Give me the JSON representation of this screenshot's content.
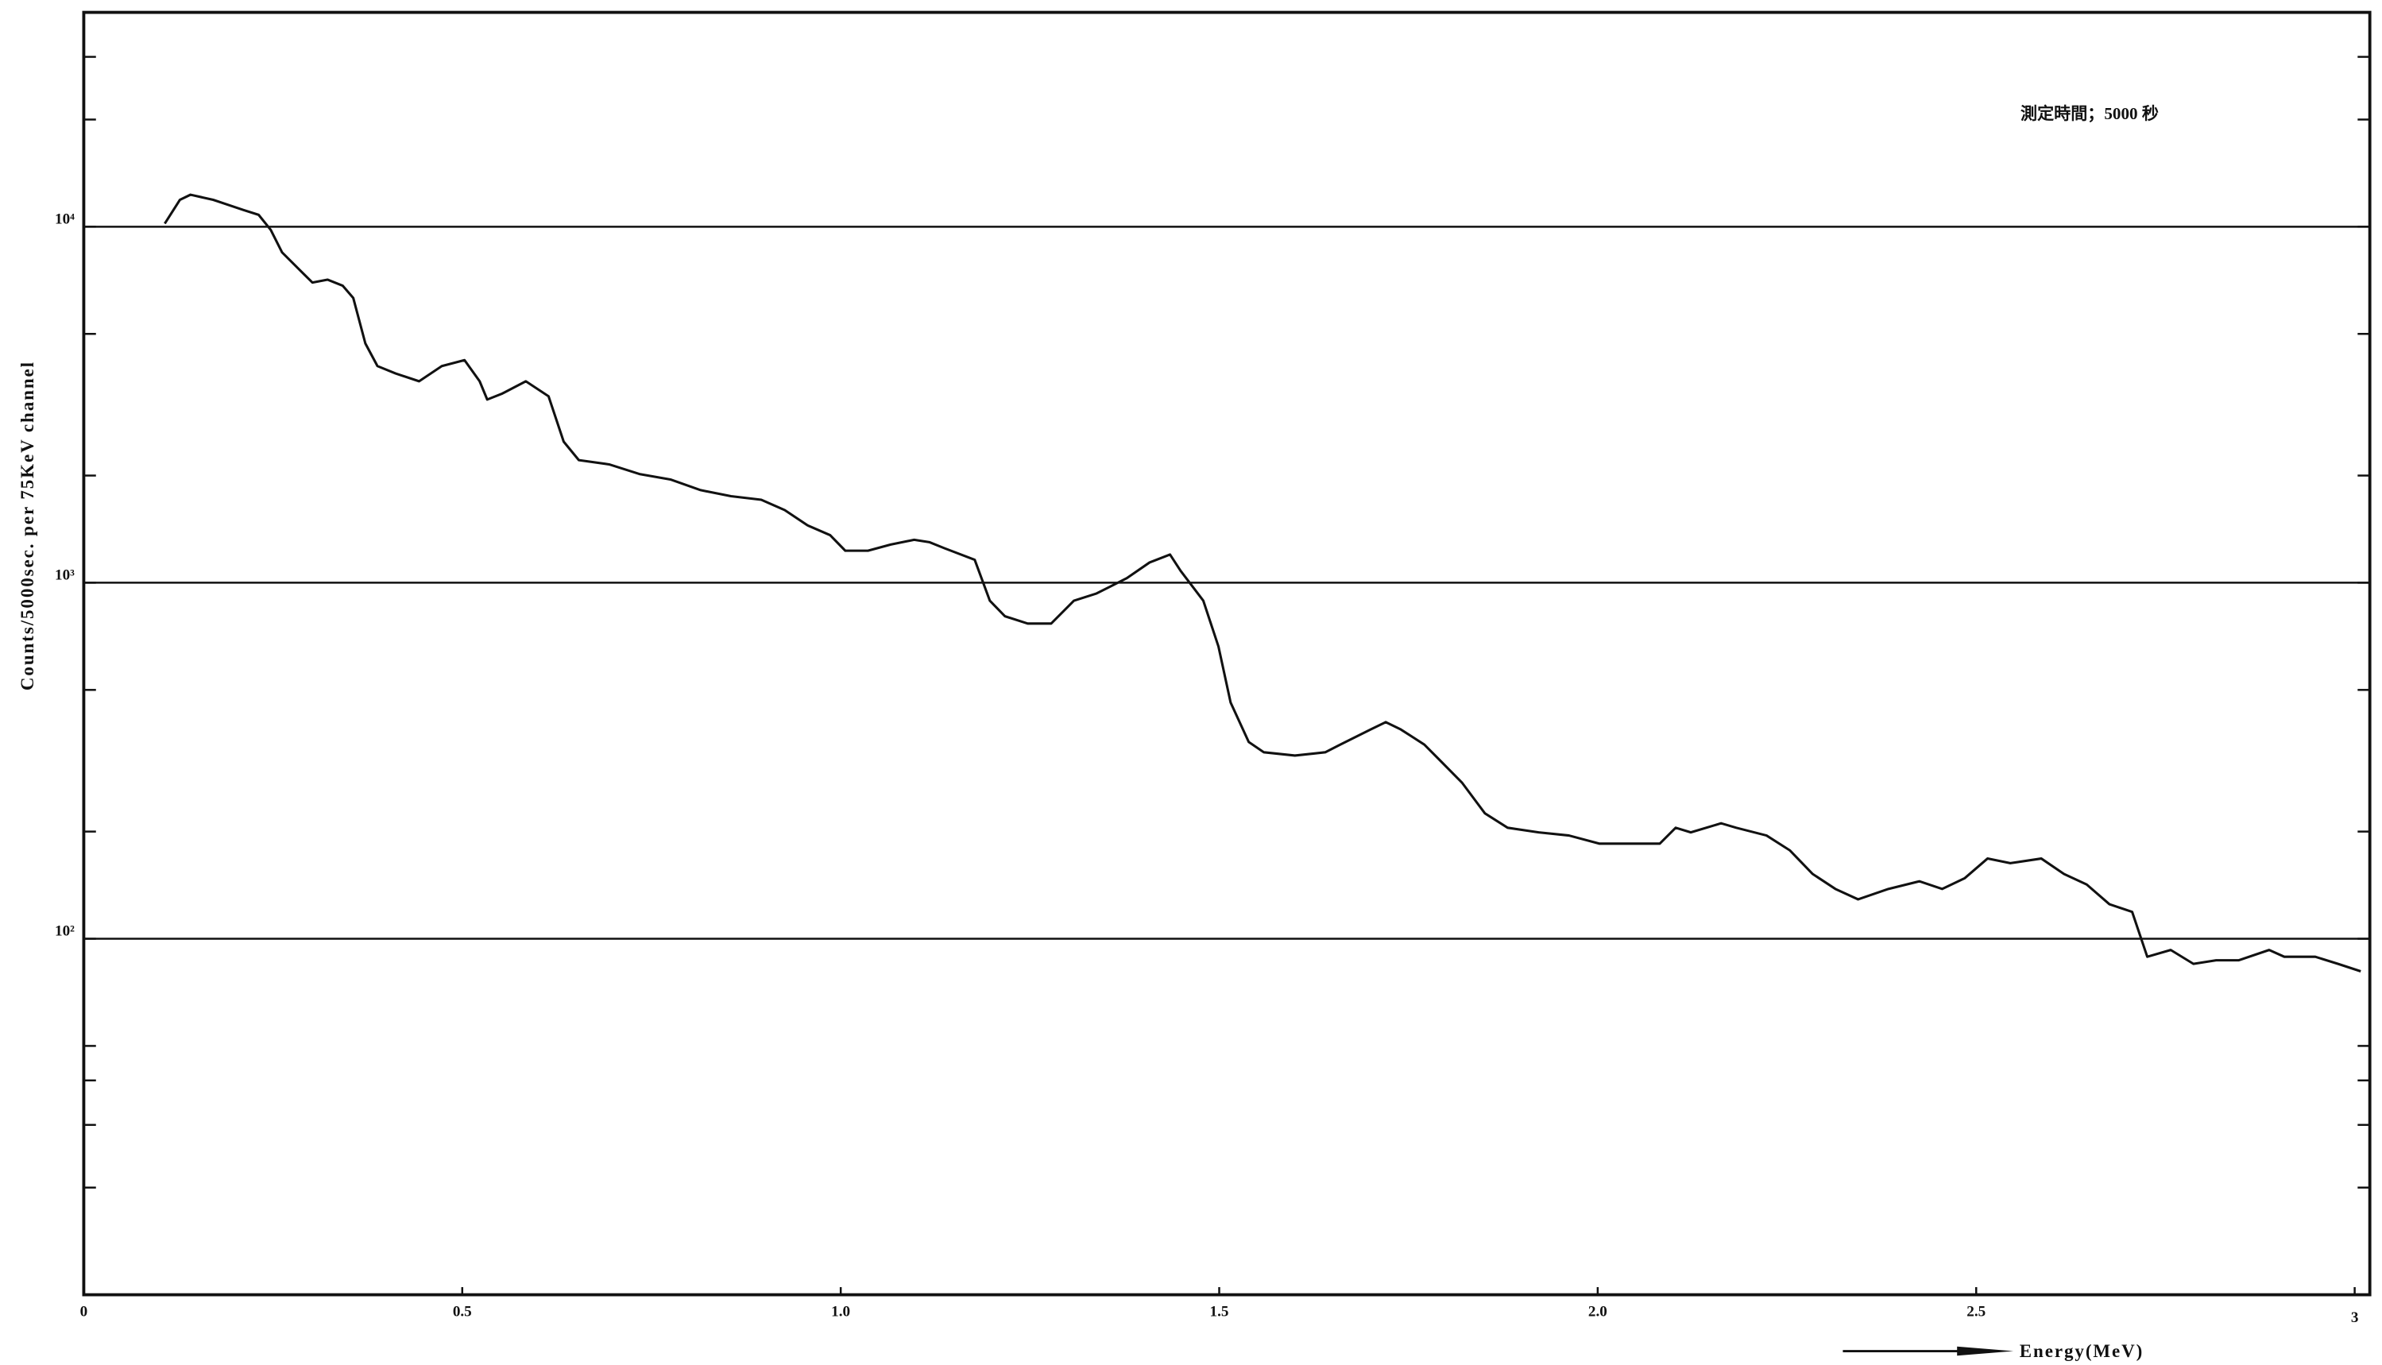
{
  "chart_data": {
    "type": "line",
    "annotation": "測定時間；5000 秒",
    "ylabel": "Counts/5000sec. per 75KeV channel",
    "xlabel": "Energy(MeV)",
    "log_y": true,
    "grid": true,
    "xlim": [
      0,
      3.02
    ],
    "ylim": [
      10,
      40000
    ],
    "xticks": [
      0,
      0.5,
      {
        "value": 1,
        "label": "1.0"
      },
      1.5,
      {
        "value": 2,
        "label": "2.0"
      },
      2.5,
      3
    ],
    "yticks": [
      {
        "value": 100,
        "label": "10²"
      },
      {
        "value": 1000,
        "label": "10³"
      },
      {
        "value": 10000,
        "label": "10⁴"
      }
    ],
    "yminorticks": [
      20,
      30,
      40,
      50,
      200,
      500,
      2000,
      5000,
      20000,
      30000
    ],
    "series": [
      {
        "color": "#111111",
        "x": [
          0.107,
          0.127,
          0.141,
          0.171,
          0.211,
          0.231,
          0.247,
          0.262,
          0.282,
          0.302,
          0.322,
          0.342,
          0.356,
          0.372,
          0.388,
          0.412,
          0.443,
          0.473,
          0.503,
          0.523,
          0.533,
          0.553,
          0.584,
          0.614,
          0.634,
          0.654,
          0.694,
          0.734,
          0.775,
          0.815,
          0.855,
          0.895,
          0.926,
          0.956,
          0.986,
          1.006,
          1.036,
          1.066,
          1.097,
          1.117,
          1.137,
          1.177,
          1.197,
          1.217,
          1.247,
          1.278,
          1.308,
          1.338,
          1.378,
          1.408,
          1.435,
          1.449,
          1.479,
          1.499,
          1.515,
          1.539,
          1.559,
          1.6,
          1.64,
          1.66,
          1.7,
          1.72,
          1.74,
          1.771,
          1.791,
          1.821,
          1.851,
          1.881,
          1.922,
          1.962,
          2.002,
          2.042,
          2.082,
          2.103,
          2.123,
          2.163,
          2.183,
          2.223,
          2.254,
          2.284,
          2.314,
          2.344,
          2.384,
          2.425,
          2.455,
          2.485,
          2.515,
          2.545,
          2.586,
          2.616,
          2.646,
          2.676,
          2.706,
          2.726,
          2.757,
          2.787,
          2.817,
          2.847,
          2.887,
          2.907,
          2.948,
          2.978,
          3.008
        ],
        "values": [
          10200,
          11900,
          12300,
          11900,
          11140,
          10800,
          9800,
          8470,
          7680,
          6970,
          7100,
          6830,
          6310,
          4700,
          4060,
          3870,
          3680,
          4060,
          4220,
          3680,
          3270,
          3400,
          3680,
          3340,
          2490,
          2210,
          2150,
          2020,
          1950,
          1820,
          1750,
          1710,
          1600,
          1450,
          1360,
          1230,
          1230,
          1280,
          1320,
          1300,
          1250,
          1160,
          890,
          805,
          768,
          768,
          890,
          933,
          1030,
          1140,
          1200,
          1080,
          890,
          662,
          461,
          357,
          334,
          327,
          334,
          351,
          387,
          406,
          387,
          351,
          318,
          274,
          225,
          205,
          199,
          195,
          185,
          185,
          185,
          205,
          199,
          211,
          205,
          195,
          177,
          152,
          138,
          129,
          138,
          145,
          138,
          148,
          168,
          163,
          168,
          152,
          142,
          125,
          119,
          89,
          93,
          85,
          87,
          87,
          93,
          89,
          89,
          85,
          81
        ]
      }
    ]
  }
}
